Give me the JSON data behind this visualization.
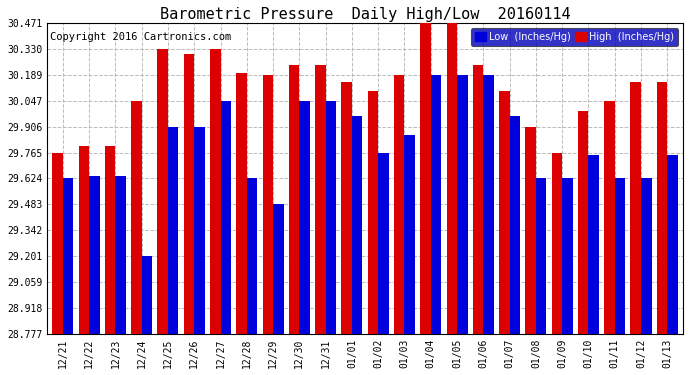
{
  "title": "Barometric Pressure  Daily High/Low  20160114",
  "copyright": "Copyright 2016 Cartronics.com",
  "legend_low": "Low  (Inches/Hg)",
  "legend_high": "High  (Inches/Hg)",
  "low_color": "#0000dd",
  "high_color": "#dd0000",
  "background_color": "#ffffff",
  "grid_color": "#bbbbbb",
  "ymin": 28.777,
  "ymax": 30.471,
  "yticks": [
    28.777,
    28.918,
    29.059,
    29.201,
    29.342,
    29.483,
    29.624,
    29.765,
    29.906,
    30.047,
    30.189,
    30.33,
    30.471
  ],
  "dates": [
    "12/21",
    "12/22",
    "12/23",
    "12/24",
    "12/25",
    "12/26",
    "12/27",
    "12/28",
    "12/29",
    "12/30",
    "12/31",
    "01/01",
    "01/02",
    "01/03",
    "01/04",
    "01/05",
    "01/06",
    "01/07",
    "01/08",
    "01/09",
    "01/10",
    "01/11",
    "01/12",
    "01/13"
  ],
  "high_values": [
    29.765,
    29.8,
    29.8,
    30.047,
    30.33,
    30.3,
    30.33,
    30.2,
    30.189,
    30.24,
    30.24,
    30.15,
    30.1,
    30.189,
    30.471,
    30.471,
    30.24,
    30.1,
    29.906,
    29.765,
    29.99,
    30.047,
    30.15,
    30.15
  ],
  "low_values": [
    29.624,
    29.635,
    29.635,
    29.201,
    29.906,
    29.906,
    30.047,
    29.624,
    29.483,
    30.047,
    30.047,
    29.965,
    29.765,
    29.86,
    30.189,
    30.189,
    30.189,
    29.965,
    29.624,
    29.624,
    29.75,
    29.624,
    29.624,
    29.75
  ],
  "title_fontsize": 11,
  "tick_fontsize": 7,
  "copyright_fontsize": 7.5
}
